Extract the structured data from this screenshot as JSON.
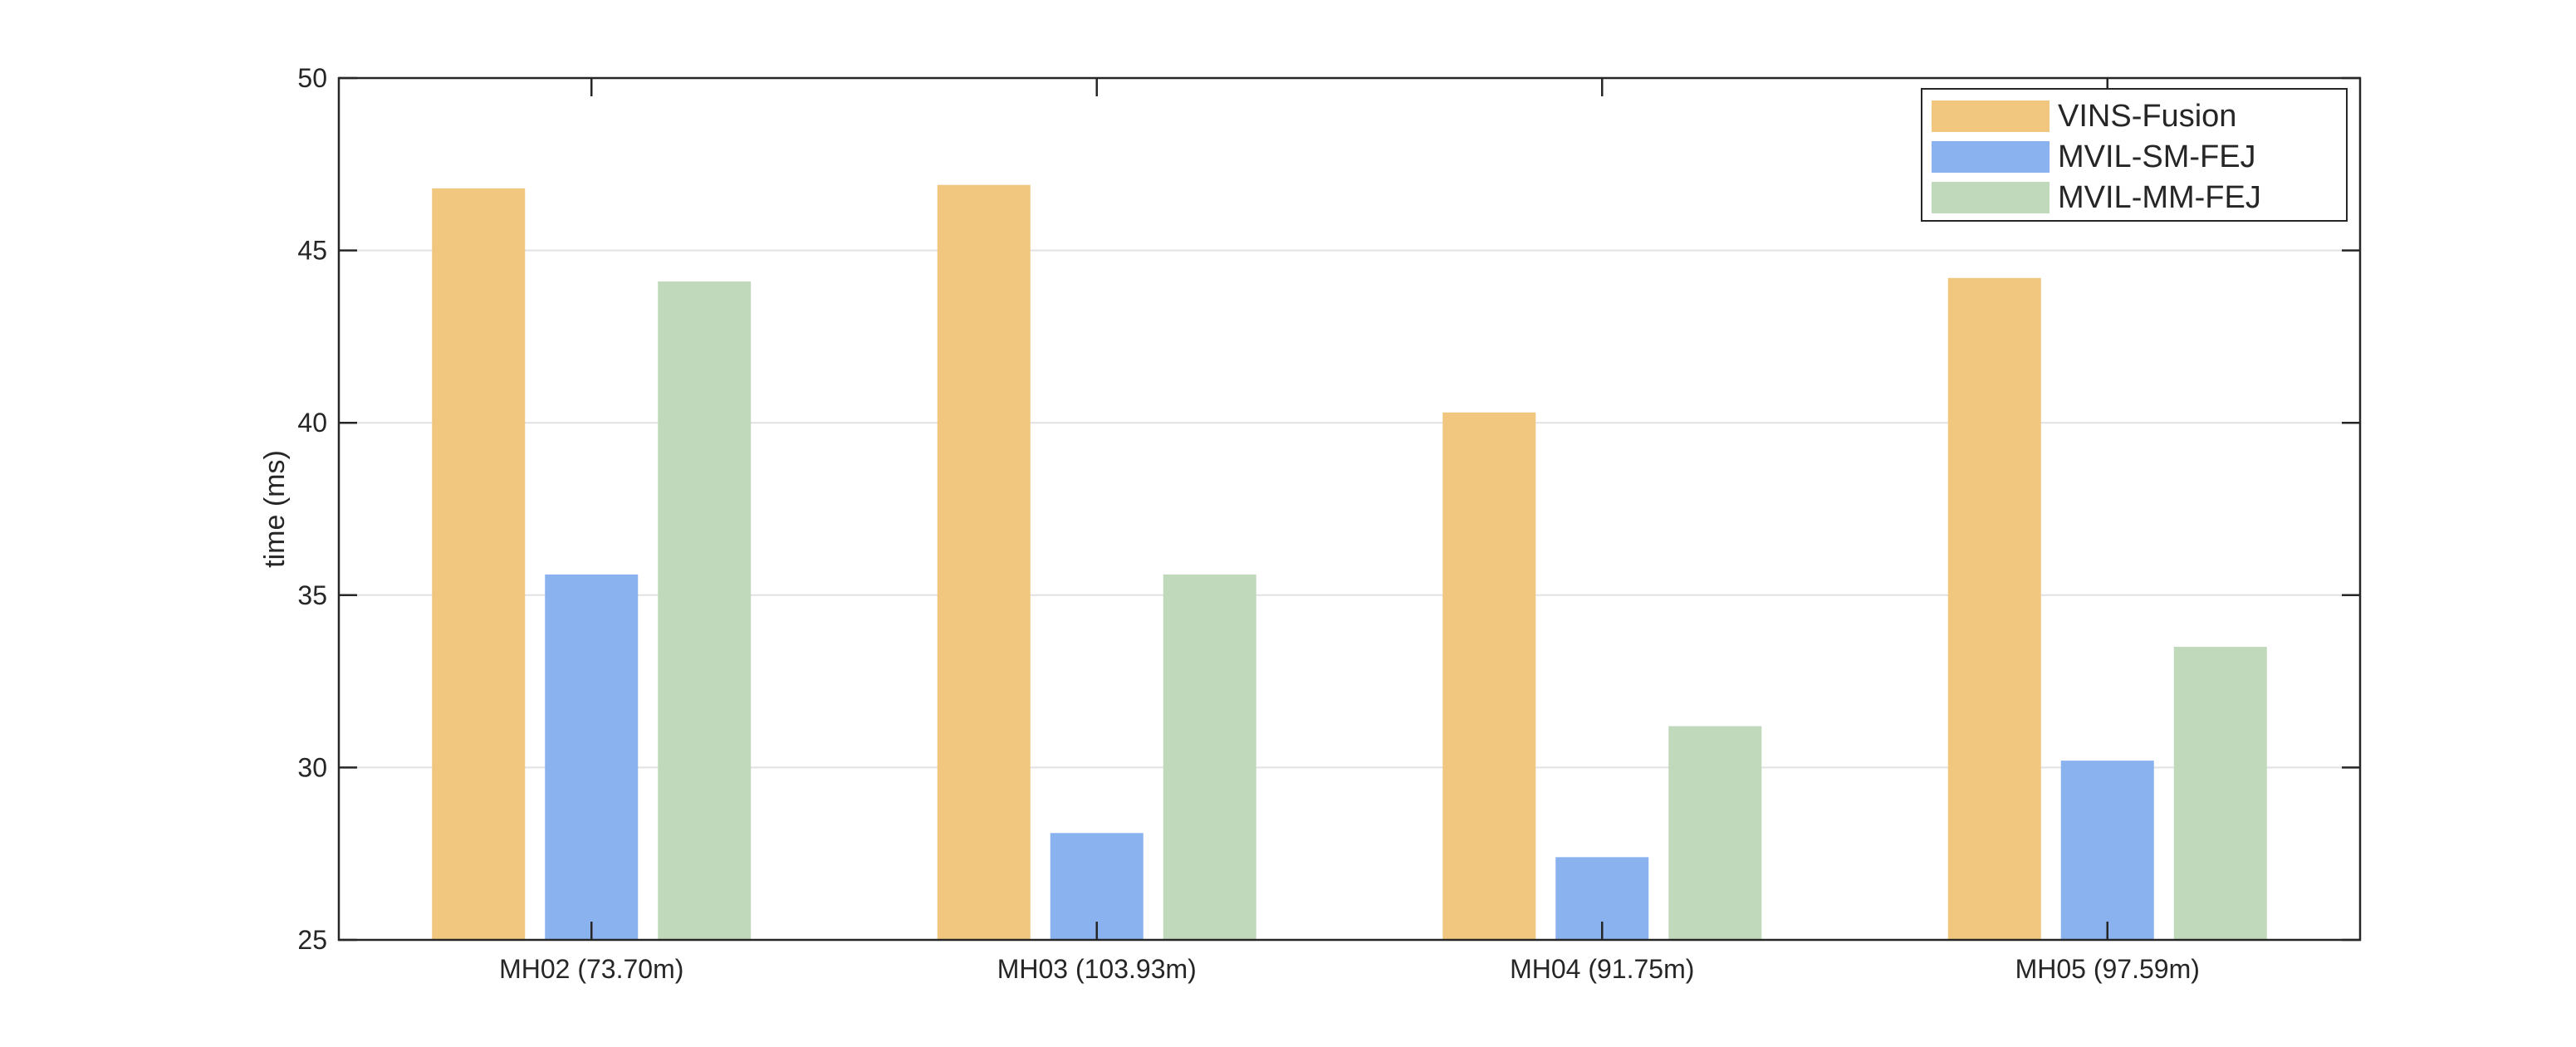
{
  "chart_data": {
    "type": "bar",
    "title": "",
    "xlabel": "",
    "ylabel": "time (ms)",
    "ylim": [
      25,
      50
    ],
    "yticks": [
      25,
      30,
      35,
      40,
      45,
      50
    ],
    "grid": "horizontal",
    "legend_position": "top-right",
    "categories": [
      "MH02 (73.70m)",
      "MH03 (103.93m)",
      "MH04 (91.75m)",
      "MH05 (97.59m)"
    ],
    "series": [
      {
        "name": "VINS-Fusion",
        "color": "#F1C67E",
        "values": [
          46.8,
          46.9,
          40.3,
          44.2
        ]
      },
      {
        "name": "MVIL-SM-FEJ",
        "color": "#8AB2EF",
        "values": [
          35.6,
          28.1,
          27.4,
          30.2
        ]
      },
      {
        "name": "MVIL-MM-FEJ",
        "color": "#C0D9BA",
        "values": [
          44.1,
          35.6,
          31.2,
          33.5
        ]
      }
    ]
  }
}
